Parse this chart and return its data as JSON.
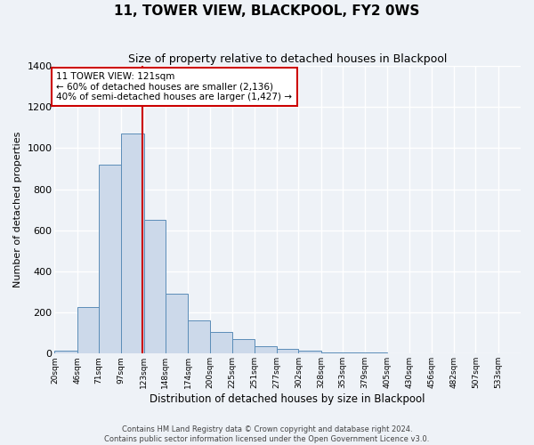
{
  "title": "11, TOWER VIEW, BLACKPOOL, FY2 0WS",
  "subtitle": "Size of property relative to detached houses in Blackpool",
  "xlabel": "Distribution of detached houses by size in Blackpool",
  "ylabel": "Number of detached properties",
  "bar_labels": [
    "20sqm",
    "46sqm",
    "71sqm",
    "97sqm",
    "123sqm",
    "148sqm",
    "174sqm",
    "200sqm",
    "225sqm",
    "251sqm",
    "277sqm",
    "302sqm",
    "328sqm",
    "353sqm",
    "379sqm",
    "405sqm",
    "430sqm",
    "456sqm",
    "482sqm",
    "507sqm",
    "533sqm"
  ],
  "bin_edges": [
    20,
    46,
    71,
    97,
    123,
    148,
    174,
    200,
    225,
    251,
    277,
    302,
    328,
    353,
    379,
    405,
    430,
    456,
    482,
    507,
    533,
    559
  ],
  "all_bar_values": [
    15,
    225,
    920,
    1070,
    650,
    290,
    160,
    105,
    70,
    35,
    25,
    15,
    5,
    5,
    5,
    3,
    3,
    3,
    3,
    3,
    3
  ],
  "property_size": 121,
  "property_label": "11 TOWER VIEW: 121sqm",
  "pct_smaller": 60,
  "count_smaller": 2136,
  "pct_larger_semi": 40,
  "count_larger_semi": 1427,
  "bar_facecolor": "#ccd9ea",
  "bar_edgecolor": "#5b8db8",
  "vline_color": "#cc0000",
  "annotation_box_edgecolor": "#cc0000",
  "background_color": "#eef2f7",
  "grid_color": "#ffffff",
  "ylim": [
    0,
    1400
  ],
  "footnote1": "Contains HM Land Registry data © Crown copyright and database right 2024.",
  "footnote2": "Contains public sector information licensed under the Open Government Licence v3.0."
}
